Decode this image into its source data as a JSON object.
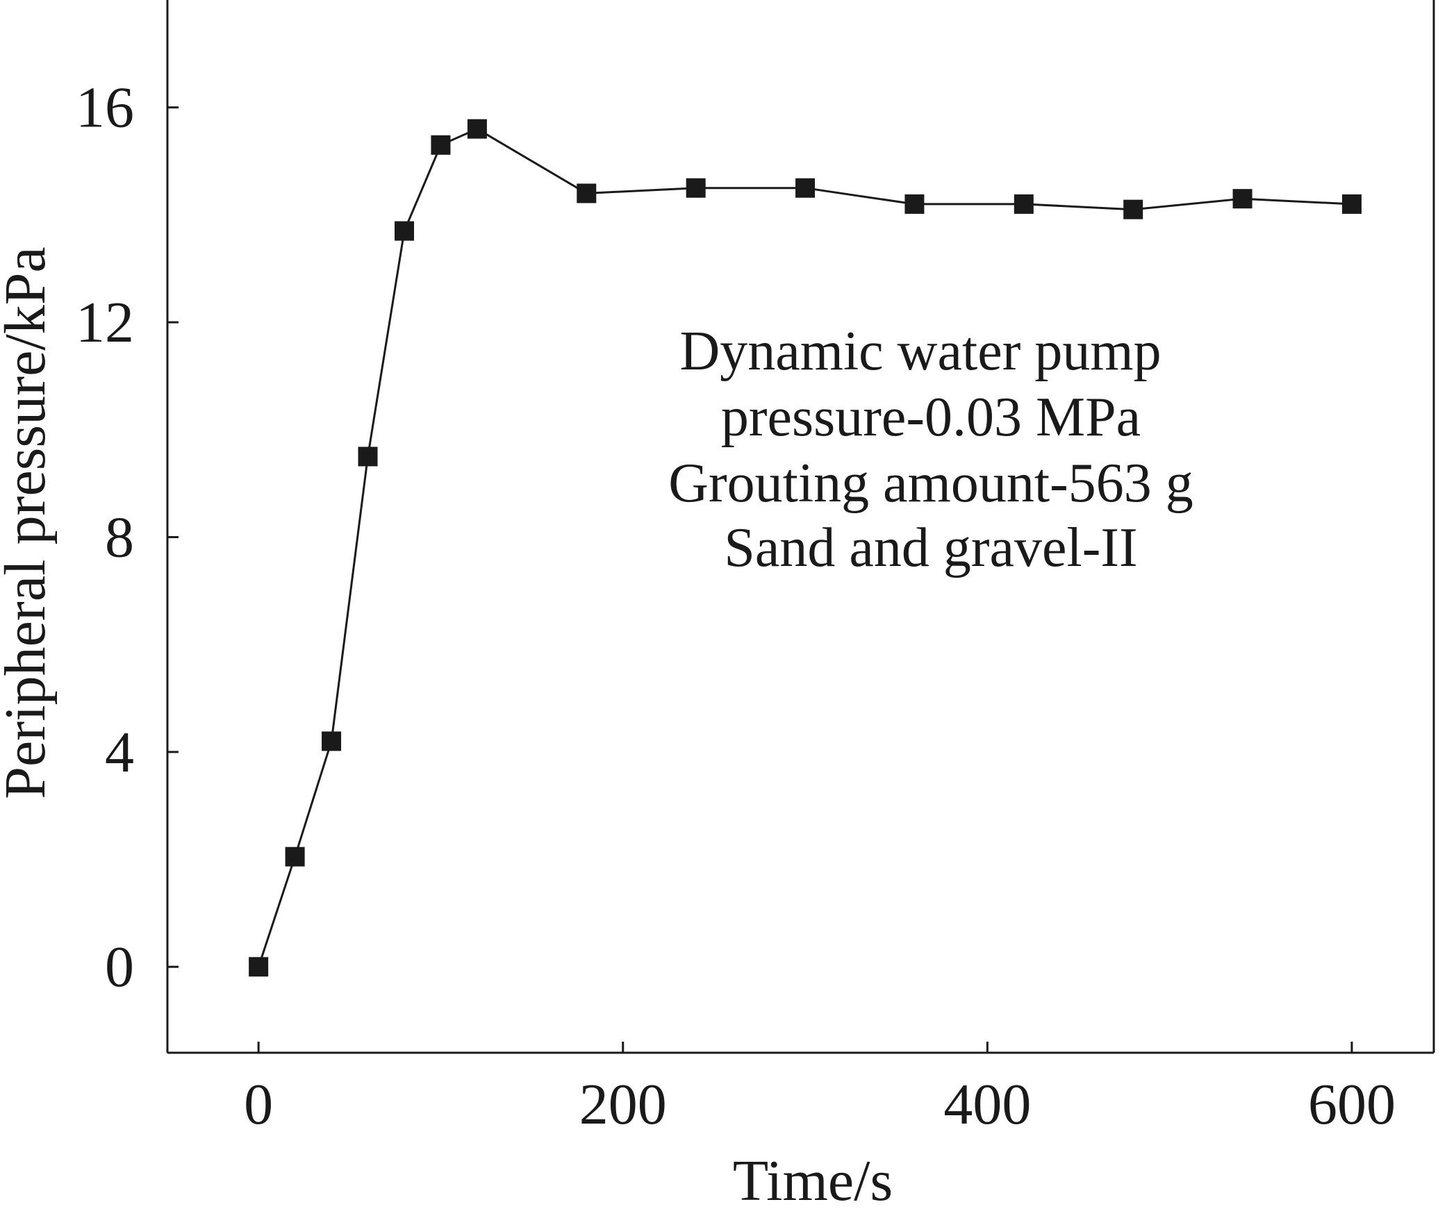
{
  "chart_data": {
    "type": "line",
    "title": "",
    "xlabel": "Time/s",
    "ylabel": "Peripheral pressure/kPa",
    "xlim": [
      -50,
      645
    ],
    "ylim": [
      -1.6,
      18
    ],
    "xticks": [
      0,
      200,
      400,
      600
    ],
    "yticks": [
      0,
      4,
      8,
      12,
      16
    ],
    "xtick_labels": [
      "0",
      "200",
      "400",
      "600"
    ],
    "ytick_labels": [
      "0",
      "4",
      "8",
      "12",
      "16"
    ],
    "grid": false,
    "legend": "none",
    "annotation": [
      "Dynamic water pump",
      "pressure-0.03 MPa",
      "Grouting amount-563 g",
      "Sand and gravel-II"
    ],
    "series": [
      {
        "marker": "square",
        "color": "#1a1a1a",
        "points": [
          {
            "x": 0,
            "y": 0
          },
          {
            "x": 20,
            "y": 2.05
          },
          {
            "x": 40,
            "y": 4.2
          },
          {
            "x": 60,
            "y": 9.5
          },
          {
            "x": 80,
            "y": 13.7
          },
          {
            "x": 100,
            "y": 15.3
          },
          {
            "x": 120,
            "y": 15.6
          },
          {
            "x": 180,
            "y": 14.4
          },
          {
            "x": 240,
            "y": 14.5
          },
          {
            "x": 300,
            "y": 14.5
          },
          {
            "x": 360,
            "y": 14.2
          },
          {
            "x": 420,
            "y": 14.2
          },
          {
            "x": 480,
            "y": 14.1
          },
          {
            "x": 540,
            "y": 14.3
          },
          {
            "x": 600,
            "y": 14.2
          }
        ]
      }
    ]
  }
}
